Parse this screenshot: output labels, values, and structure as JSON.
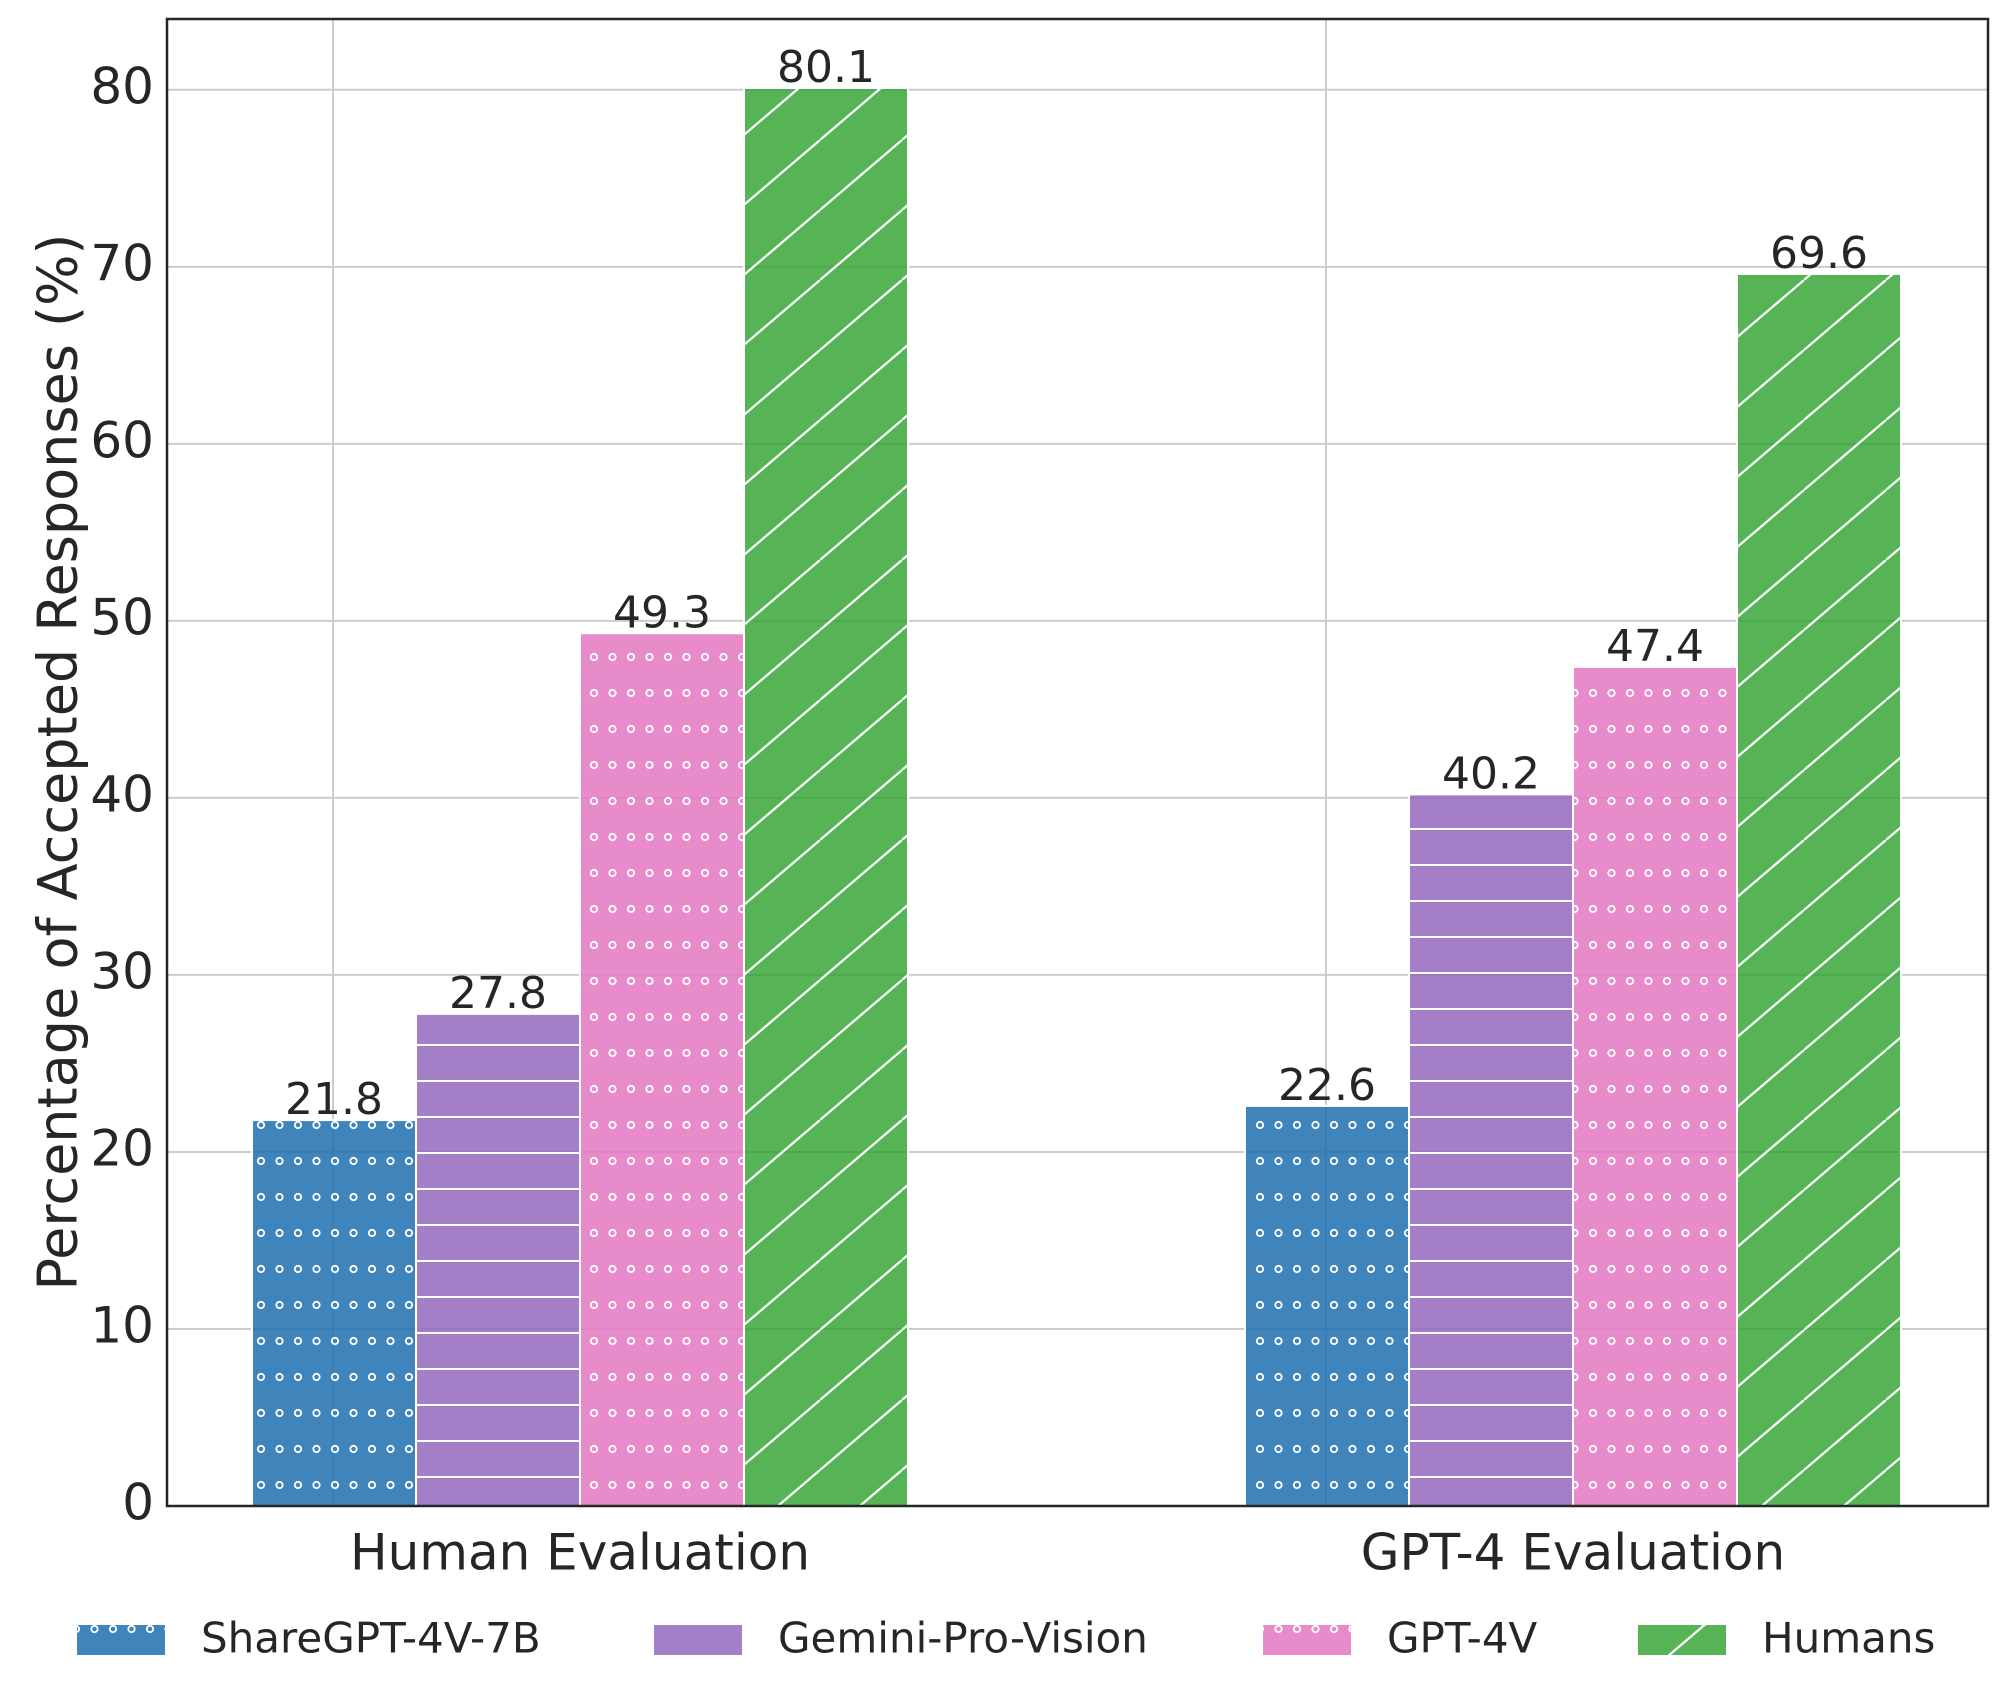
{
  "chart_data": {
    "type": "bar",
    "title": "",
    "xlabel": "",
    "ylabel": "Percentage of Accepted Responses (%)",
    "categories": [
      "Human Evaluation",
      "GPT-4 Evaluation"
    ],
    "series": [
      {
        "name": "ShareGPT-4V-7B",
        "values": [
          21.8,
          22.6
        ],
        "color": "#1f6fb0",
        "pattern": "dots"
      },
      {
        "name": "Gemini-Pro-Vision",
        "values": [
          27.8,
          40.2
        ],
        "color": "#9467bd",
        "pattern": "horizontal-lines"
      },
      {
        "name": "GPT-4V",
        "values": [
          49.3,
          47.4
        ],
        "color": "#e377c2",
        "pattern": "dots"
      },
      {
        "name": "Humans",
        "values": [
          80.1,
          69.6
        ],
        "color": "#2ca02c",
        "pattern": "diagonal-lines"
      }
    ],
    "data_labels": [
      [
        "21.8",
        "22.6"
      ],
      [
        "27.8",
        "40.2"
      ],
      [
        "49.3",
        "47.4"
      ],
      [
        "80.1",
        "69.6"
      ]
    ],
    "ylim": [
      0,
      84
    ],
    "yticks": [
      0,
      10,
      20,
      30,
      40,
      50,
      60,
      70,
      80
    ],
    "ytick_labels": [
      "0",
      "10",
      "20",
      "30",
      "40",
      "50",
      "60",
      "70",
      "80"
    ],
    "grid": true,
    "legend_position": "bottom"
  }
}
